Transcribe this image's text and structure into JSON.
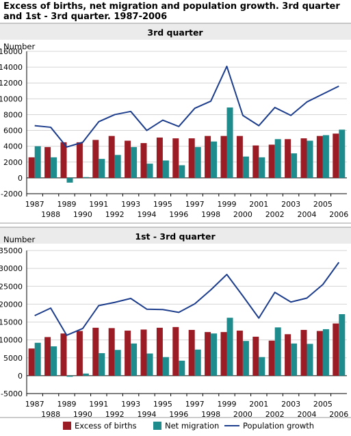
{
  "title": "Excess of births, net migration and population growth. 3rd quarter and 1st - 3rd quarter. 1987-2006",
  "colors": {
    "births": "#9b1c24",
    "migration": "#1e8c8c",
    "growth": "#1c3c8c",
    "grid": "#d4d4d4",
    "panel": "#ebebeb"
  },
  "legend": [
    {
      "label": "Excess of births",
      "kind": "bar",
      "color": "#9b1c24"
    },
    {
      "label": "Net migration",
      "kind": "bar",
      "color": "#1e8c8c"
    },
    {
      "label": "Population growth",
      "kind": "line",
      "color": "#1c3c8c"
    }
  ],
  "chart_data": [
    {
      "type": "bar",
      "title": "3rd quarter",
      "ylabel": "Number",
      "ylim": [
        -2000,
        16000
      ],
      "yticks": [
        16000,
        14000,
        12000,
        10000,
        8000,
        6000,
        4000,
        2000,
        0,
        -2000
      ],
      "grid": true,
      "categories": [
        "1987",
        "1988",
        "1989",
        "1990",
        "1991",
        "1992",
        "1993",
        "1994",
        "1995",
        "1996",
        "1997",
        "1998",
        "1999",
        "2000",
        "2001",
        "2002",
        "2003",
        "2004",
        "2005",
        "2006"
      ],
      "series": [
        {
          "name": "Excess of births",
          "type": "bar",
          "values": [
            2600,
            3900,
            4500,
            4500,
            4800,
            5300,
            4700,
            4400,
            5100,
            5000,
            5000,
            5300,
            5300,
            5300,
            4100,
            4200,
            4900,
            5000,
            5300,
            5600
          ]
        },
        {
          "name": "Net migration",
          "type": "bar",
          "values": [
            4000,
            2600,
            -600,
            100,
            2400,
            2900,
            3900,
            1800,
            2200,
            1600,
            3900,
            4600,
            8900,
            2700,
            2600,
            4900,
            3100,
            4700,
            5400,
            6100
          ]
        },
        {
          "name": "Population growth",
          "type": "line",
          "values": [
            6600,
            6400,
            3900,
            4500,
            7100,
            8000,
            8400,
            6000,
            7300,
            6500,
            8800,
            9700,
            14100,
            7900,
            6600,
            8900,
            7900,
            9600,
            10600,
            11600
          ]
        }
      ]
    },
    {
      "type": "bar",
      "title": "1st - 3rd quarter",
      "ylabel": "Number",
      "ylim": [
        -5000,
        35000
      ],
      "yticks": [
        35000,
        30000,
        25000,
        20000,
        15000,
        10000,
        5000,
        0,
        -5000
      ],
      "grid": true,
      "categories": [
        "1987",
        "1988",
        "1989",
        "1990",
        "1991",
        "1992",
        "1993",
        "1994",
        "1995",
        "1996",
        "1997",
        "1998",
        "1999",
        "2000",
        "2001",
        "2002",
        "2003",
        "2004",
        "2005",
        "2006"
      ],
      "series": [
        {
          "name": "Excess of births",
          "type": "bar",
          "values": [
            7600,
            10800,
            11800,
            12500,
            13400,
            13300,
            12600,
            12900,
            13400,
            13600,
            12800,
            12200,
            12200,
            12600,
            10900,
            9800,
            11600,
            12800,
            12500,
            14600
          ]
        },
        {
          "name": "Net migration",
          "type": "bar",
          "values": [
            9200,
            8200,
            -300,
            600,
            6300,
            7200,
            9000,
            6200,
            5200,
            4200,
            7300,
            11800,
            16200,
            9700,
            5200,
            13500,
            9000,
            8900,
            13000,
            17200
          ]
        },
        {
          "name": "Population growth",
          "type": "line",
          "values": [
            16800,
            18900,
            11300,
            13200,
            19600,
            20500,
            21600,
            18600,
            18500,
            17700,
            20100,
            24000,
            28300,
            22300,
            16100,
            23300,
            20600,
            21700,
            25500,
            31700
          ]
        }
      ]
    }
  ]
}
